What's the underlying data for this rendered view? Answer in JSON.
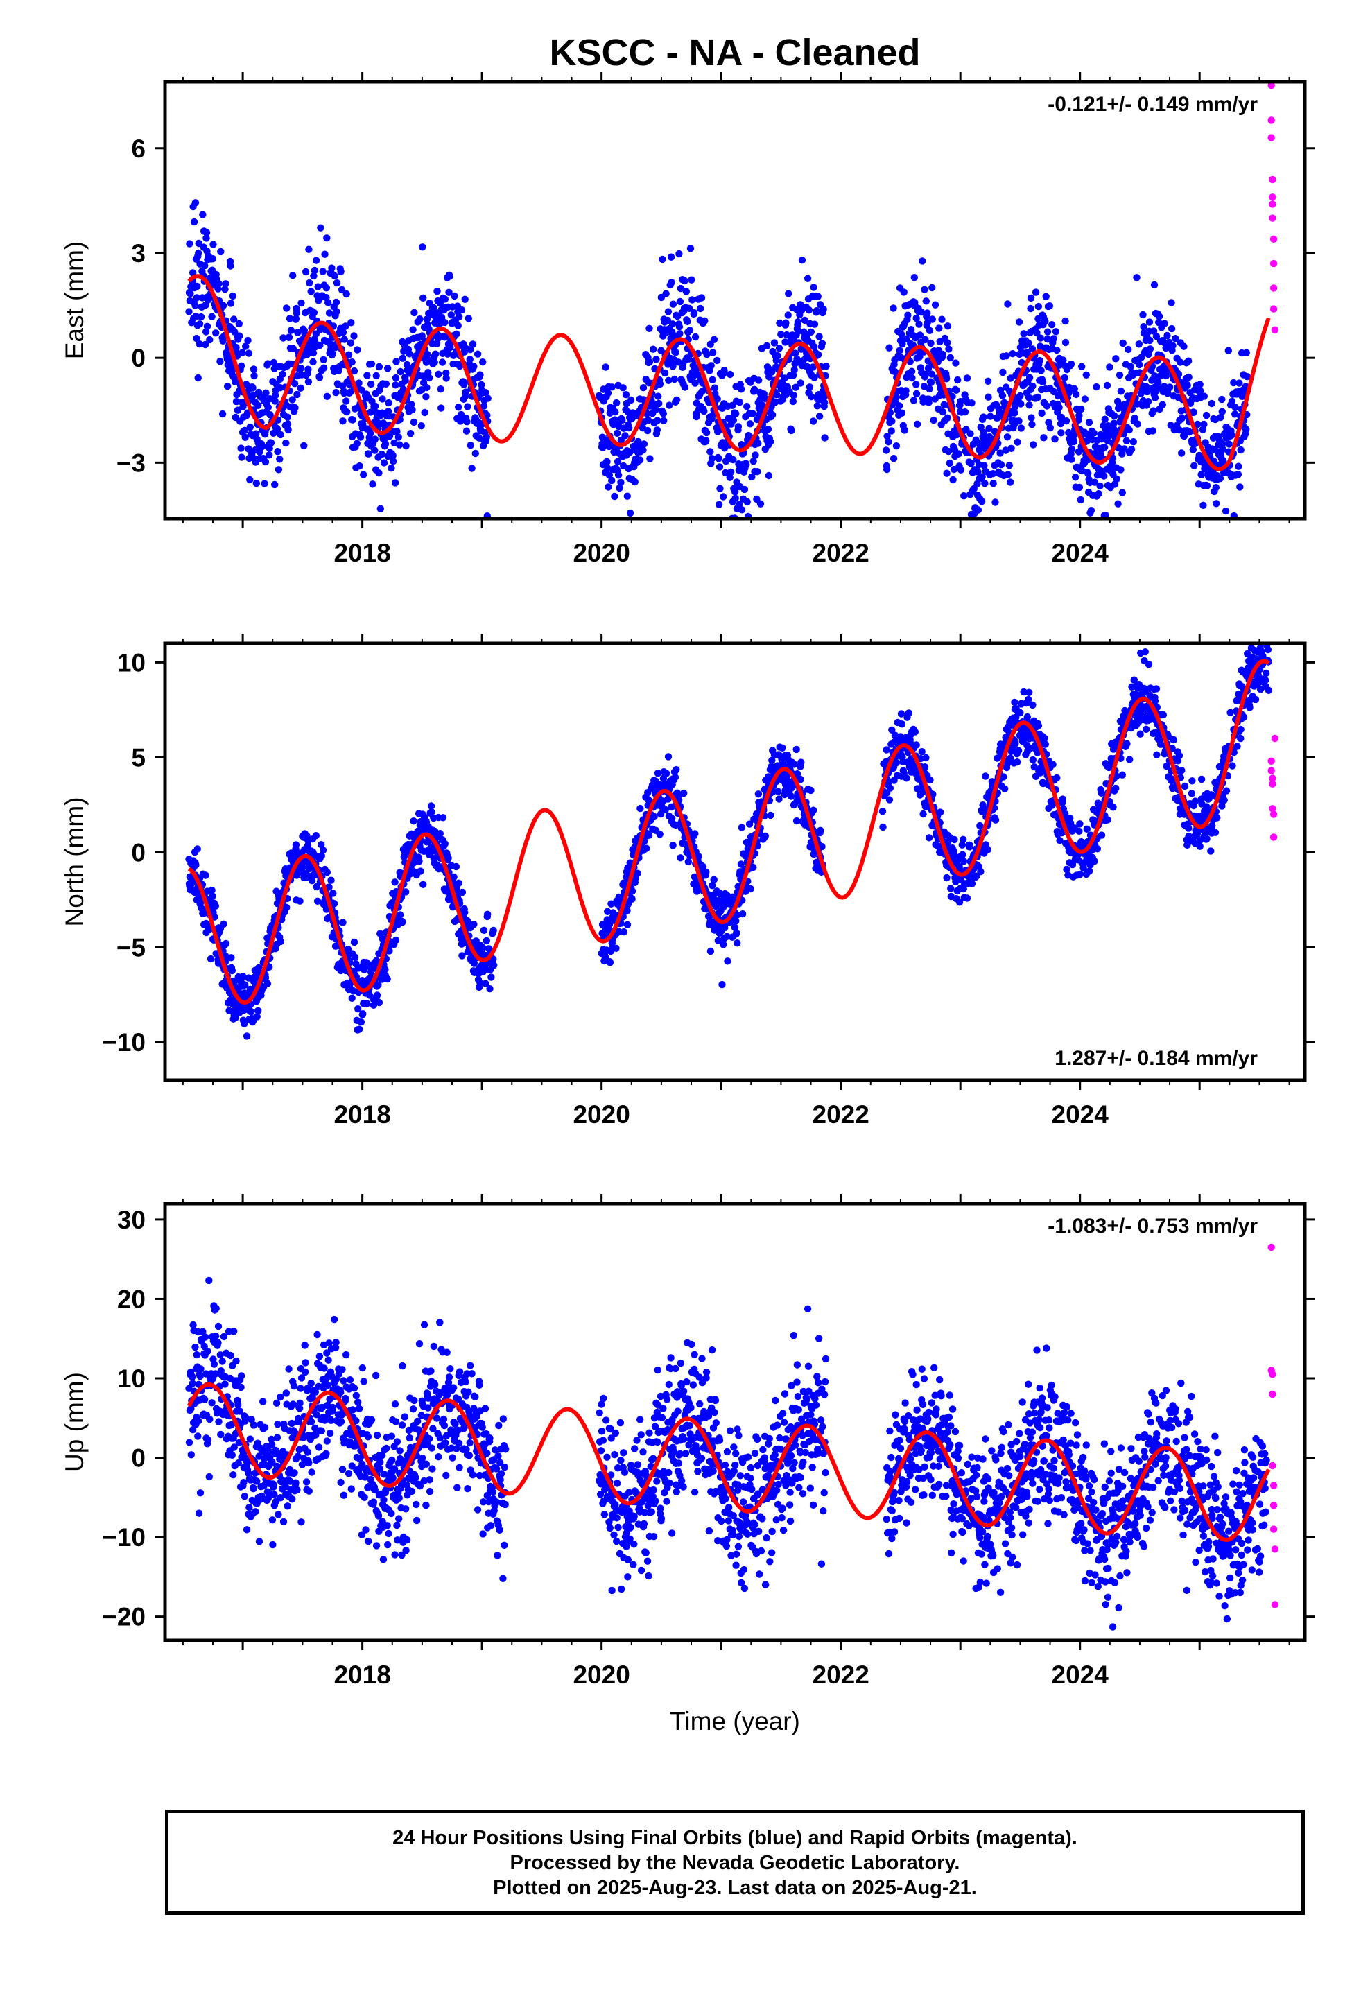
{
  "title": "KSCC  - NA - Cleaned",
  "xlabel": "Time (year)",
  "x_ticks": [
    "2018",
    "2020",
    "2022",
    "2024"
  ],
  "colors": {
    "final_orbits": "#0000ff",
    "rapid_orbits": "#ff00ff",
    "model": "#ff0000"
  },
  "caption": {
    "line1": "24 Hour Positions Using Final Orbits (blue) and Rapid Orbits (magenta).",
    "line2": "Processed by the Nevada Geodetic Laboratory.",
    "line3": "Plotted on 2025-Aug-23. Last data on 2025-Aug-21."
  },
  "chart_data": [
    {
      "type": "scatter",
      "panel": "east",
      "ylabel": "East (mm)",
      "rate_label": "-0.121+/- 0.149 mm/yr",
      "rate_position": "top-right",
      "xlim": [
        2016.35,
        2025.88
      ],
      "ylim": [
        -4.6,
        7.9
      ],
      "y_ticks": [
        -3,
        0,
        3,
        6
      ],
      "y_tick_labels": [
        "−3",
        "0",
        "3",
        "6"
      ],
      "model": {
        "name": "red model curve",
        "seasonal_amplitude_mm": 1.55,
        "peak_phase_year": 0.66,
        "offset_points": [
          [
            2016.55,
            1.0
          ],
          [
            2017.2,
            -0.5
          ],
          [
            2018.2,
            -0.6
          ],
          [
            2019.2,
            -0.85
          ],
          [
            2020.2,
            -0.95
          ],
          [
            2021.2,
            -1.1
          ],
          [
            2022.2,
            -1.2
          ],
          [
            2023.2,
            -1.3
          ],
          [
            2024.2,
            -1.45
          ],
          [
            2025.25,
            -1.65
          ],
          [
            2025.58,
            -0.2
          ]
        ]
      },
      "final_orbits_segments": [
        [
          2016.55,
          2019.05
        ],
        [
          2019.98,
          2021.88
        ],
        [
          2022.38,
          2025.4
        ]
      ],
      "scatter_sd_mm": 0.95,
      "rapid_orbits": {
        "x": [
          2025.6,
          2025.6,
          2025.6,
          2025.61,
          2025.61,
          2025.61,
          2025.61,
          2025.62,
          2025.62,
          2025.62,
          2025.62,
          2025.63
        ],
        "y": [
          7.8,
          6.8,
          6.3,
          5.1,
          4.6,
          4.4,
          4.0,
          3.4,
          2.7,
          2.0,
          1.4,
          0.8
        ]
      }
    },
    {
      "type": "scatter",
      "panel": "north",
      "ylabel": "North (mm)",
      "rate_label": "1.287+/- 0.184 mm/yr",
      "rate_position": "bottom-right",
      "xlim": [
        2016.35,
        2025.88
      ],
      "ylim": [
        -12.0,
        11.0
      ],
      "y_ticks": [
        -10,
        -5,
        0,
        5,
        10
      ],
      "y_tick_labels": [
        "−10",
        "−5",
        "0",
        "5",
        "10"
      ],
      "model": {
        "name": "red model curve",
        "seasonal_amplitude_mm": 3.7,
        "peak_phase_year": 0.52,
        "offset_points": [
          [
            2016.55,
            -4.5
          ],
          [
            2018.0,
            -3.6
          ],
          [
            2019.0,
            -2.0
          ],
          [
            2020.0,
            -1.0
          ],
          [
            2021.0,
            0.0
          ],
          [
            2022.0,
            1.3
          ],
          [
            2023.0,
            2.5
          ],
          [
            2024.0,
            3.7
          ],
          [
            2025.0,
            5.0
          ],
          [
            2025.58,
            6.5
          ]
        ]
      },
      "final_orbits_segments": [
        [
          2016.55,
          2019.1
        ],
        [
          2020.0,
          2021.85
        ],
        [
          2022.35,
          2025.58
        ]
      ],
      "scatter_sd_mm": 0.8,
      "rapid_orbits": {
        "x": [
          2025.6,
          2025.6,
          2025.61,
          2025.61,
          2025.61,
          2025.62,
          2025.62,
          2025.63
        ],
        "y": [
          4.8,
          4.3,
          3.9,
          3.6,
          2.3,
          2.0,
          0.8,
          6.0
        ]
      }
    },
    {
      "type": "scatter",
      "panel": "up",
      "ylabel": "Up (mm)",
      "rate_label": "-1.083+/- 0.753 mm/yr",
      "rate_position": "top-right",
      "xlim": [
        2016.35,
        2025.88
      ],
      "ylim": [
        -23.0,
        32.0
      ],
      "y_ticks": [
        -20,
        -10,
        0,
        10,
        20,
        30
      ],
      "y_tick_labels": [
        "−20",
        "−10",
        "0",
        "10",
        "20",
        "30"
      ],
      "model": {
        "name": "red model curve",
        "seasonal_amplitude_mm": 5.6,
        "peak_phase_year": 0.72,
        "offset_points": [
          [
            2016.55,
            3.8
          ],
          [
            2018.0,
            2.3
          ],
          [
            2019.5,
            0.8
          ],
          [
            2020.5,
            -0.5
          ],
          [
            2021.5,
            -1.4
          ],
          [
            2022.5,
            -2.2
          ],
          [
            2023.5,
            -3.2
          ],
          [
            2024.5,
            -4.2
          ],
          [
            2025.58,
            -5.0
          ]
        ]
      },
      "final_orbits_segments": [
        [
          2016.55,
          2019.2
        ],
        [
          2019.98,
          2021.88
        ],
        [
          2022.38,
          2025.56
        ]
      ],
      "scatter_sd_mm": 4.5,
      "rapid_orbits": {
        "x": [
          2025.6,
          2025.6,
          2025.61,
          2025.61,
          2025.61,
          2025.62,
          2025.62,
          2025.62,
          2025.63,
          2025.63
        ],
        "y": [
          26.5,
          11.0,
          10.5,
          8.0,
          -1.0,
          -3.5,
          -6.0,
          -9.0,
          -11.5,
          -18.5
        ]
      }
    }
  ]
}
